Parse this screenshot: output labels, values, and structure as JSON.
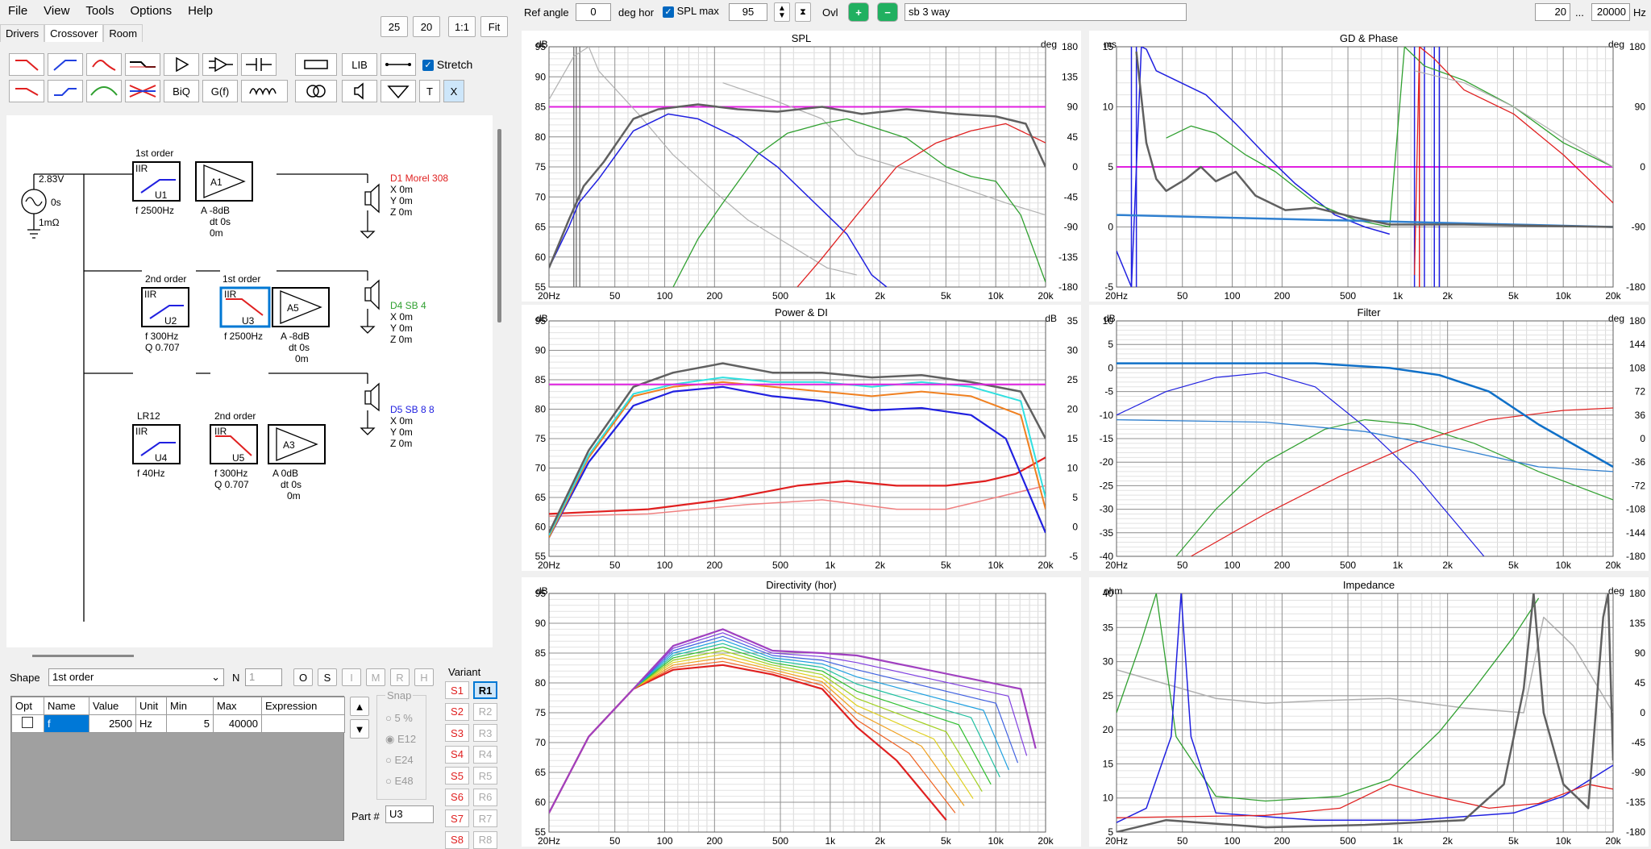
{
  "menu": [
    "File",
    "View",
    "Tools",
    "Options",
    "Help"
  ],
  "tabs": [
    "Drivers",
    "Crossover",
    "Room"
  ],
  "zoom": {
    "b25": "25",
    "b20": "20",
    "b11": "1:1",
    "fit": "Fit"
  },
  "toolbar": {
    "lib": "LIB",
    "biq": "BiQ",
    "gf": "G(f)",
    "t": "T",
    "x": "X",
    "stretch": "Stretch"
  },
  "top": {
    "ref_angle_label": "Ref angle",
    "ref_angle": "0",
    "deg_hor": "deg hor",
    "spl_max_label": "SPL max",
    "spl_max": "95",
    "ovl": "Ovl",
    "name": "sb 3 way",
    "f_min": "20",
    "dots": "...",
    "f_max": "20000",
    "hz": "Hz"
  },
  "schematic": {
    "source": {
      "v": "2.83V",
      "t": "0s",
      "r": "1mΩ"
    },
    "b1": {
      "order": "1st order",
      "iir": "IIR",
      "u": "U1",
      "f": "f   2500Hz",
      "amp": "A1",
      "amp_a": "A  -8dB",
      "dt": "dt 0s",
      "m": "0m",
      "drv": "D1 Morel 308",
      "x": "X 0m",
      "y": "Y 0m",
      "z": "Z 0m"
    },
    "b2": {
      "order1": "2nd order",
      "iir1": "IIR",
      "u1": "U2",
      "f1": "f   300Hz",
      "q1": "Q  0.707",
      "order2": "1st order",
      "iir2": "IIR",
      "u2": "U3",
      "f2": "f   2500Hz",
      "amp": "A5",
      "amp_a": "A  -8dB",
      "dt": "dt 0s",
      "m": "0m",
      "drv": "D4 SB 4",
      "x": "X 0m",
      "y": "Y 0m",
      "z": "Z 0m"
    },
    "b3": {
      "order1": "LR12",
      "iir1": "IIR",
      "u1": "U4",
      "f1": "f   40Hz",
      "order2": "2nd order",
      "iir2": "IIR",
      "u2": "U5",
      "f2": "f   300Hz",
      "q2": "Q  0.707",
      "amp": "A3",
      "amp_a": "A  0dB",
      "dt": "dt 0s",
      "m": "0m",
      "drv": "D5 SB 8 8",
      "x": "X 0m",
      "y": "Y 0m",
      "z": "Z 0m"
    }
  },
  "shape": {
    "label": "Shape",
    "value": "1st order",
    "n_label": "N",
    "n": "1",
    "buttons": [
      "O",
      "S",
      "I",
      "M",
      "R",
      "H"
    ]
  },
  "table": {
    "headers": [
      "Opt",
      "Name",
      "Value",
      "Unit",
      "Min",
      "Max",
      "Expression"
    ],
    "row": {
      "name": "f",
      "value": "2500",
      "unit": "Hz",
      "min": "5",
      "max": "40000",
      "expr": ""
    }
  },
  "snap": {
    "label": "Snap",
    "options": [
      "5 %",
      "E12",
      "E24",
      "E48"
    ],
    "selected": "E12"
  },
  "variant": {
    "label": "Variant",
    "s": [
      "S1",
      "S2",
      "S3",
      "S4",
      "S5",
      "S6",
      "S7",
      "S8"
    ],
    "r": [
      "R1",
      "R2",
      "R3",
      "R4",
      "R5",
      "R6",
      "R7",
      "R8"
    ],
    "active": "R1"
  },
  "part": {
    "label": "Part #",
    "value": "U3"
  },
  "colors": {
    "magenta": "#e020e0",
    "blue": "#2020e0",
    "green": "#30a030",
    "red": "#e02020",
    "grey": "#606060",
    "lightgrey": "#b0b0b0",
    "orange": "#f08020",
    "cyan": "#30e0e0",
    "skyblue": "#3080d0"
  },
  "freq_ticks": [
    "20Hz",
    "50",
    "100",
    "200",
    "500",
    "1k",
    "2k",
    "5k",
    "10k",
    "20k"
  ],
  "plots": {
    "spl": {
      "title": "SPL",
      "lunit": "dB",
      "runit": "deg",
      "left": [
        "95",
        "90",
        "85",
        "80",
        "75",
        "70",
        "65",
        "60",
        "55"
      ],
      "right": [
        "180",
        "135",
        "90",
        "45",
        "0",
        "-45",
        "-90",
        "-135",
        "-180"
      ]
    },
    "gd": {
      "title": "GD & Phase",
      "lunit": "ms",
      "runit": "deg",
      "left": [
        "15",
        "10",
        "5",
        "0",
        "-5"
      ],
      "right": [
        "180",
        "90",
        "0",
        "-90",
        "-180"
      ]
    },
    "power": {
      "title": "Power & DI",
      "lunit": "dB",
      "runit": "dB",
      "left": [
        "95",
        "90",
        "85",
        "80",
        "75",
        "70",
        "65",
        "60",
        "55"
      ],
      "right": [
        "35",
        "30",
        "25",
        "20",
        "15",
        "10",
        "5",
        "0",
        "-5"
      ]
    },
    "filter": {
      "title": "Filter",
      "lunit": "dB",
      "runit": "deg",
      "left": [
        "10",
        "5",
        "0",
        "-5",
        "-10",
        "-15",
        "-20",
        "-25",
        "-30",
        "-35",
        "-40"
      ],
      "right": [
        "180",
        "144",
        "108",
        "72",
        "36",
        "0",
        "-36",
        "-72",
        "-108",
        "-144",
        "-180"
      ]
    },
    "dir": {
      "title": "Directivity (hor)",
      "lunit": "dB",
      "runit": "",
      "left": [
        "95",
        "90",
        "85",
        "80",
        "75",
        "70",
        "65",
        "60",
        "55"
      ],
      "right": []
    },
    "imp": {
      "title": "Impedance",
      "lunit": "ohm",
      "runit": "deg",
      "left": [
        "40",
        "35",
        "30",
        "25",
        "20",
        "15",
        "10",
        "5"
      ],
      "right": [
        "180",
        "135",
        "90",
        "45",
        "0",
        "-45",
        "-90",
        "-135",
        "-180"
      ]
    }
  }
}
